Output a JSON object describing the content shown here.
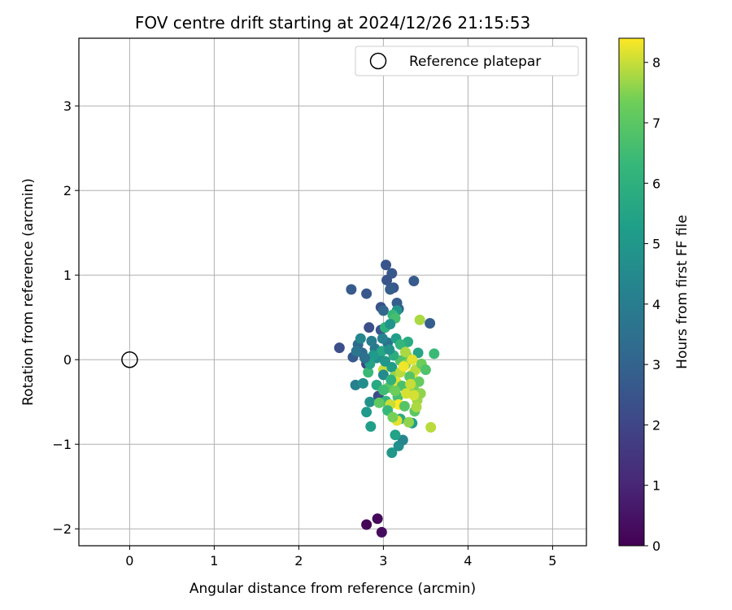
{
  "chart_data": {
    "type": "scatter",
    "title": "FOV centre drift starting at 2024/12/26 21:15:53",
    "xlabel": "Angular distance from reference (arcmin)",
    "ylabel": "Rotation from reference (arcmin)",
    "xlim": [
      -0.6,
      5.4
    ],
    "ylim": [
      -2.2,
      3.8
    ],
    "xticks": [
      "0",
      "1",
      "2",
      "3",
      "4",
      "5"
    ],
    "yticks": [
      "−2",
      "−1",
      "0",
      "1",
      "2",
      "3"
    ],
    "grid": true,
    "legend": {
      "position": "top-right",
      "entries": [
        "Reference platepar"
      ]
    },
    "colorbar": {
      "label": "Hours from first FF file",
      "min": 0,
      "max": 8.4,
      "ticks": [
        "0",
        "1",
        "2",
        "3",
        "4",
        "5",
        "6",
        "7",
        "8"
      ],
      "colormap": "viridis"
    },
    "reference_point": {
      "x": 0.0,
      "y": 0.0
    },
    "series": [
      {
        "points": [
          {
            "x": 2.8,
            "y": -1.95,
            "c": 0.1
          },
          {
            "x": 2.93,
            "y": -1.88,
            "c": 0.2
          },
          {
            "x": 2.98,
            "y": -2.04,
            "c": 0.3
          },
          {
            "x": 3.03,
            "y": 1.12,
            "c": 2.5
          },
          {
            "x": 3.1,
            "y": 1.02,
            "c": 2.6
          },
          {
            "x": 3.36,
            "y": 0.93,
            "c": 2.7
          },
          {
            "x": 3.04,
            "y": 0.94,
            "c": 2.5
          },
          {
            "x": 3.12,
            "y": 0.85,
            "c": 2.6
          },
          {
            "x": 3.08,
            "y": 0.83,
            "c": 2.8
          },
          {
            "x": 2.62,
            "y": 0.83,
            "c": 2.7
          },
          {
            "x": 2.8,
            "y": 0.78,
            "c": 2.6
          },
          {
            "x": 3.16,
            "y": 0.67,
            "c": 2.8
          },
          {
            "x": 2.97,
            "y": 0.62,
            "c": 2.4
          },
          {
            "x": 3.18,
            "y": 0.6,
            "c": 2.9
          },
          {
            "x": 3.0,
            "y": 0.58,
            "c": 3.1
          },
          {
            "x": 3.55,
            "y": 0.43,
            "c": 2.8
          },
          {
            "x": 2.97,
            "y": 0.35,
            "c": 2.5
          },
          {
            "x": 2.83,
            "y": 0.38,
            "c": 2.3
          },
          {
            "x": 2.48,
            "y": 0.14,
            "c": 2.3
          },
          {
            "x": 2.7,
            "y": 0.18,
            "c": 3.2
          },
          {
            "x": 2.64,
            "y": 0.03,
            "c": 2.7
          },
          {
            "x": 2.9,
            "y": 0.13,
            "c": 3.8
          },
          {
            "x": 2.95,
            "y": 0.05,
            "c": 3.0
          },
          {
            "x": 2.8,
            "y": -0.05,
            "c": 1.9
          },
          {
            "x": 2.75,
            "y": 0.08,
            "c": 3.3
          },
          {
            "x": 3.05,
            "y": 0.2,
            "c": 3.6
          },
          {
            "x": 2.86,
            "y": 0.22,
            "c": 4.0
          },
          {
            "x": 2.67,
            "y": -0.3,
            "c": 4.1
          },
          {
            "x": 2.76,
            "y": -0.28,
            "c": 4.6
          },
          {
            "x": 2.94,
            "y": -0.43,
            "c": 2.2
          },
          {
            "x": 2.84,
            "y": -0.5,
            "c": 4.8
          },
          {
            "x": 2.8,
            "y": -0.62,
            "c": 5.1
          },
          {
            "x": 2.85,
            "y": -0.79,
            "c": 5.3
          },
          {
            "x": 3.1,
            "y": -1.1,
            "c": 5.0
          },
          {
            "x": 3.18,
            "y": -1.02,
            "c": 4.7
          },
          {
            "x": 3.23,
            "y": -0.95,
            "c": 4.4
          },
          {
            "x": 3.14,
            "y": -0.89,
            "c": 5.4
          },
          {
            "x": 3.2,
            "y": -0.7,
            "c": 5.8
          },
          {
            "x": 3.34,
            "y": -0.75,
            "c": 5.2
          },
          {
            "x": 3.16,
            "y": 0.58,
            "c": 5.0
          },
          {
            "x": 3.11,
            "y": 0.53,
            "c": 6.3
          },
          {
            "x": 3.14,
            "y": 0.49,
            "c": 6.6
          },
          {
            "x": 3.02,
            "y": 0.38,
            "c": 6.0
          },
          {
            "x": 3.43,
            "y": 0.47,
            "c": 7.8
          },
          {
            "x": 3.08,
            "y": 0.42,
            "c": 4.9
          },
          {
            "x": 3.15,
            "y": 0.25,
            "c": 5.3
          },
          {
            "x": 3.29,
            "y": 0.21,
            "c": 5.8
          },
          {
            "x": 3.2,
            "y": 0.18,
            "c": 6.2
          },
          {
            "x": 3.41,
            "y": 0.08,
            "c": 5.5
          },
          {
            "x": 3.6,
            "y": 0.07,
            "c": 6.4
          },
          {
            "x": 3.27,
            "y": 0.06,
            "c": 7.2
          },
          {
            "x": 2.73,
            "y": 0.25,
            "c": 4.4
          },
          {
            "x": 2.92,
            "y": 0.02,
            "c": 4.7
          },
          {
            "x": 3.0,
            "y": -0.12,
            "c": 8.0
          },
          {
            "x": 2.82,
            "y": -0.15,
            "c": 6.4
          },
          {
            "x": 3.1,
            "y": -0.09,
            "c": 5.2
          },
          {
            "x": 3.0,
            "y": -0.18,
            "c": 4.5
          },
          {
            "x": 3.2,
            "y": -0.01,
            "c": 6.8
          },
          {
            "x": 3.26,
            "y": -0.06,
            "c": 7.5
          },
          {
            "x": 3.35,
            "y": -0.16,
            "c": 8.3
          },
          {
            "x": 3.38,
            "y": -0.12,
            "c": 7.9
          },
          {
            "x": 3.31,
            "y": -0.2,
            "c": 6.9
          },
          {
            "x": 3.42,
            "y": -0.26,
            "c": 7.2
          },
          {
            "x": 3.13,
            "y": -0.2,
            "c": 7.6
          },
          {
            "x": 3.15,
            "y": -0.26,
            "c": 8.2
          },
          {
            "x": 3.06,
            "y": -0.33,
            "c": 7.0
          },
          {
            "x": 3.22,
            "y": -0.31,
            "c": 6.7
          },
          {
            "x": 3.36,
            "y": -0.35,
            "c": 7.4
          },
          {
            "x": 3.17,
            "y": -0.44,
            "c": 6.6
          },
          {
            "x": 3.27,
            "y": -0.4,
            "c": 8.1
          },
          {
            "x": 3.03,
            "y": -0.49,
            "c": 6.2
          },
          {
            "x": 2.95,
            "y": -0.51,
            "c": 7.1
          },
          {
            "x": 3.4,
            "y": -0.48,
            "c": 7.7
          },
          {
            "x": 3.18,
            "y": -0.53,
            "c": 8.4
          },
          {
            "x": 3.08,
            "y": -0.53,
            "c": 8.0
          },
          {
            "x": 3.05,
            "y": -0.6,
            "c": 6.3
          },
          {
            "x": 3.37,
            "y": -0.61,
            "c": 7.0
          },
          {
            "x": 3.16,
            "y": -0.72,
            "c": 8.2
          },
          {
            "x": 3.11,
            "y": -0.68,
            "c": 7.4
          },
          {
            "x": 3.3,
            "y": -0.74,
            "c": 7.6
          },
          {
            "x": 3.56,
            "y": -0.8,
            "c": 7.9
          },
          {
            "x": 3.45,
            "y": -0.05,
            "c": 7.3
          },
          {
            "x": 3.5,
            "y": -0.12,
            "c": 6.8
          },
          {
            "x": 3.34,
            "y": 0.0,
            "c": 8.2
          },
          {
            "x": 3.26,
            "y": 0.09,
            "c": 7.8
          },
          {
            "x": 3.12,
            "y": 0.05,
            "c": 5.9
          },
          {
            "x": 2.98,
            "y": 0.1,
            "c": 5.6
          },
          {
            "x": 2.88,
            "y": 0.05,
            "c": 5.1
          },
          {
            "x": 2.84,
            "y": -0.05,
            "c": 5.4
          },
          {
            "x": 2.92,
            "y": -0.3,
            "c": 5.7
          },
          {
            "x": 3.0,
            "y": -0.36,
            "c": 6.5
          },
          {
            "x": 3.44,
            "y": -0.4,
            "c": 7.6
          },
          {
            "x": 3.32,
            "y": -0.29,
            "c": 8.0
          },
          {
            "x": 3.2,
            "y": -0.15,
            "c": 7.9
          },
          {
            "x": 3.09,
            "y": -0.24,
            "c": 6.1
          },
          {
            "x": 3.25,
            "y": -0.55,
            "c": 6.9
          },
          {
            "x": 2.99,
            "y": 0.25,
            "c": 4.2
          },
          {
            "x": 3.07,
            "y": 0.12,
            "c": 4.8
          },
          {
            "x": 2.68,
            "y": 0.1,
            "c": 3.7
          },
          {
            "x": 2.78,
            "y": 0.02,
            "c": 3.5
          },
          {
            "x": 3.02,
            "y": -0.02,
            "c": 5.0
          },
          {
            "x": 3.14,
            "y": -0.37,
            "c": 7.3
          },
          {
            "x": 3.39,
            "y": -0.56,
            "c": 7.8
          },
          {
            "x": 3.24,
            "y": -0.08,
            "c": 8.3
          },
          {
            "x": 3.36,
            "y": -0.42,
            "c": 8.1
          }
        ]
      }
    ]
  }
}
